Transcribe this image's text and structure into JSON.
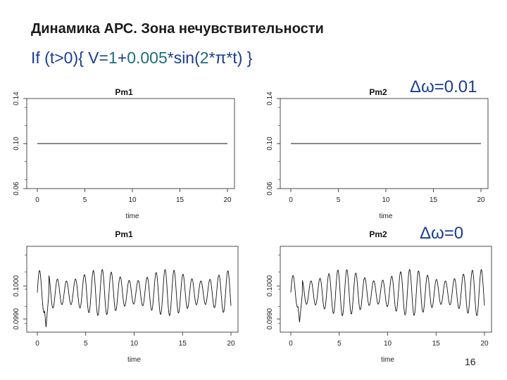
{
  "slide": {
    "title": "Динамика АРС. Зона нечувствительности",
    "code": {
      "p1": "If (t>0){ V=",
      "n1": "1",
      "p2": "+",
      "n2": "0.005",
      "p3": "*sin(",
      "n3": "2",
      "p4": "*π*t) }"
    },
    "delta_top": "Δω=0.01",
    "delta_bottom": "Δω=0",
    "page_number": "16"
  },
  "chart_data": [
    {
      "type": "line",
      "title": "Pm1",
      "xlabel": "time",
      "xlim": [
        0,
        20
      ],
      "xticks": [
        "0",
        "5",
        "10",
        "15",
        "20"
      ],
      "yticks": [
        "0.06",
        "0.10",
        "0.14"
      ],
      "ylim": [
        0.06,
        0.14
      ],
      "x": [
        0,
        20
      ],
      "series": [
        {
          "values": [
            0.1,
            0.1
          ]
        }
      ]
    },
    {
      "type": "line",
      "title": "Pm2",
      "xlabel": "time",
      "xlim": [
        0,
        20
      ],
      "xticks": [
        "0",
        "5",
        "10",
        "15",
        "20"
      ],
      "yticks": [
        "0.06",
        "0.10",
        "0.14"
      ],
      "ylim": [
        0.06,
        0.14
      ],
      "x": [
        0,
        20
      ],
      "series": [
        {
          "values": [
            0.1,
            0.1
          ]
        }
      ]
    },
    {
      "type": "line",
      "title": "Pm1",
      "xlabel": "time",
      "xlim": [
        0,
        20
      ],
      "xticks": [
        "0",
        "5",
        "10",
        "15",
        "20"
      ],
      "yticks": [
        "0.0990",
        "0.1000"
      ],
      "ylim": [
        0.0986,
        0.1012
      ],
      "oscillation": {
        "center": 0.0998,
        "amplitude": 0.0007,
        "cycles_per_unit": 1.08,
        "initial_dip": 0.09875
      }
    },
    {
      "type": "line",
      "title": "Pm2",
      "xlabel": "time",
      "xlim": [
        0,
        20
      ],
      "xticks": [
        "0",
        "5",
        "10",
        "15",
        "20"
      ],
      "yticks": [
        "0.0990",
        "0.1000"
      ],
      "ylim": [
        0.0986,
        0.1012
      ],
      "oscillation": {
        "center": 0.0998,
        "amplitude": 0.0007,
        "cycles_per_unit": 1.08,
        "initial_dip": 0.0989
      }
    }
  ]
}
